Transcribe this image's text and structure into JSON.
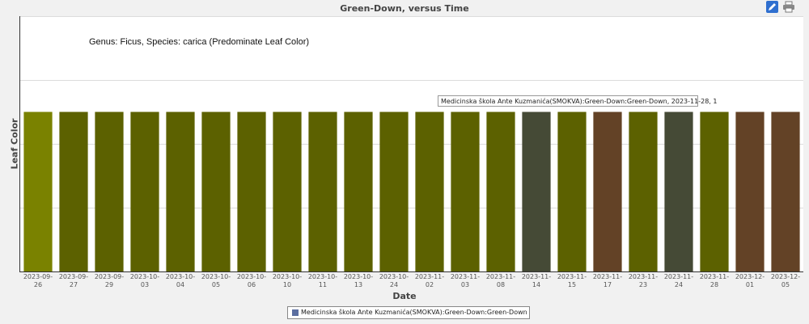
{
  "chart_data": {
    "type": "bar",
    "title": "Green-Down, versus Time",
    "annotation": "Genus: Ficus, Species: carica (Predominate Leaf Color)",
    "xlabel": "Date",
    "ylabel": "Leaf Color",
    "categories": [
      "2023-09-26",
      "2023-09-27",
      "2023-09-29",
      "2023-10-03",
      "2023-10-04",
      "2023-10-05",
      "2023-10-06",
      "2023-10-10",
      "2023-10-11",
      "2023-10-13",
      "2023-10-24",
      "2023-11-02",
      "2023-11-03",
      "2023-11-08",
      "2023-11-14",
      "2023-11-15",
      "2023-11-17",
      "2023-11-23",
      "2023-11-24",
      "2023-11-28",
      "2023-12-01",
      "2023-12-05"
    ],
    "category_display": [
      [
        "2023-09-",
        "26"
      ],
      [
        "2023-09-",
        "27"
      ],
      [
        "2023-09-",
        "29"
      ],
      [
        "2023-10-",
        "03"
      ],
      [
        "2023-10-",
        "04"
      ],
      [
        "2023-10-",
        "05"
      ],
      [
        "2023-10-",
        "06"
      ],
      [
        "2023-10-",
        "10"
      ],
      [
        "2023-10-",
        "11"
      ],
      [
        "2023-10-",
        "13"
      ],
      [
        "2023-10-",
        "24"
      ],
      [
        "2023-11-",
        "02"
      ],
      [
        "2023-11-",
        "03"
      ],
      [
        "2023-11-",
        "08"
      ],
      [
        "2023-11-",
        "14"
      ],
      [
        "2023-11-",
        "15"
      ],
      [
        "2023-11-",
        "17"
      ],
      [
        "2023-11-",
        "23"
      ],
      [
        "2023-11-",
        "24"
      ],
      [
        "2023-11-",
        "28"
      ],
      [
        "2023-12-",
        "01"
      ],
      [
        "2023-12-",
        "05"
      ]
    ],
    "values": [
      1,
      1,
      1,
      1,
      1,
      1,
      1,
      1,
      1,
      1,
      1,
      1,
      1,
      1,
      1,
      1,
      1,
      1,
      1,
      1,
      1,
      1
    ],
    "ylim": [
      0,
      1.6
    ],
    "bar_colors": [
      "#7a8200",
      "#5c6100",
      "#5c6100",
      "#5c6100",
      "#5c6100",
      "#5c6100",
      "#5c6100",
      "#5c6100",
      "#5c6100",
      "#5c6100",
      "#5c6100",
      "#5c6100",
      "#5c6100",
      "#5c6100",
      "#454a36",
      "#5c6100",
      "#634226",
      "#5c6100",
      "#454a36",
      "#5c6100",
      "#634226",
      "#634226"
    ],
    "series": [
      {
        "name": "Medicinska škola Ante Kuzmanića(SMOKVA):Green-Down:Green-Down",
        "values": [
          1,
          1,
          1,
          1,
          1,
          1,
          1,
          1,
          1,
          1,
          1,
          1,
          1,
          1,
          1,
          1,
          1,
          1,
          1,
          1,
          1,
          1
        ]
      }
    ],
    "grid": true,
    "legend_position": "bottom-center",
    "tooltip": "Medicinska škola Ante Kuzmanića(SMOKVA):Green-Down:Green-Down, 2023-11-28, 1"
  },
  "legend": {
    "label": "Medicinska škola Ante Kuzmanića(SMOKVA):Green-Down:Green-Down",
    "swatch_color": "#5b6ea0"
  },
  "toolbar": {
    "edit_icon": "pencil-icon",
    "print_icon": "printer-icon"
  }
}
